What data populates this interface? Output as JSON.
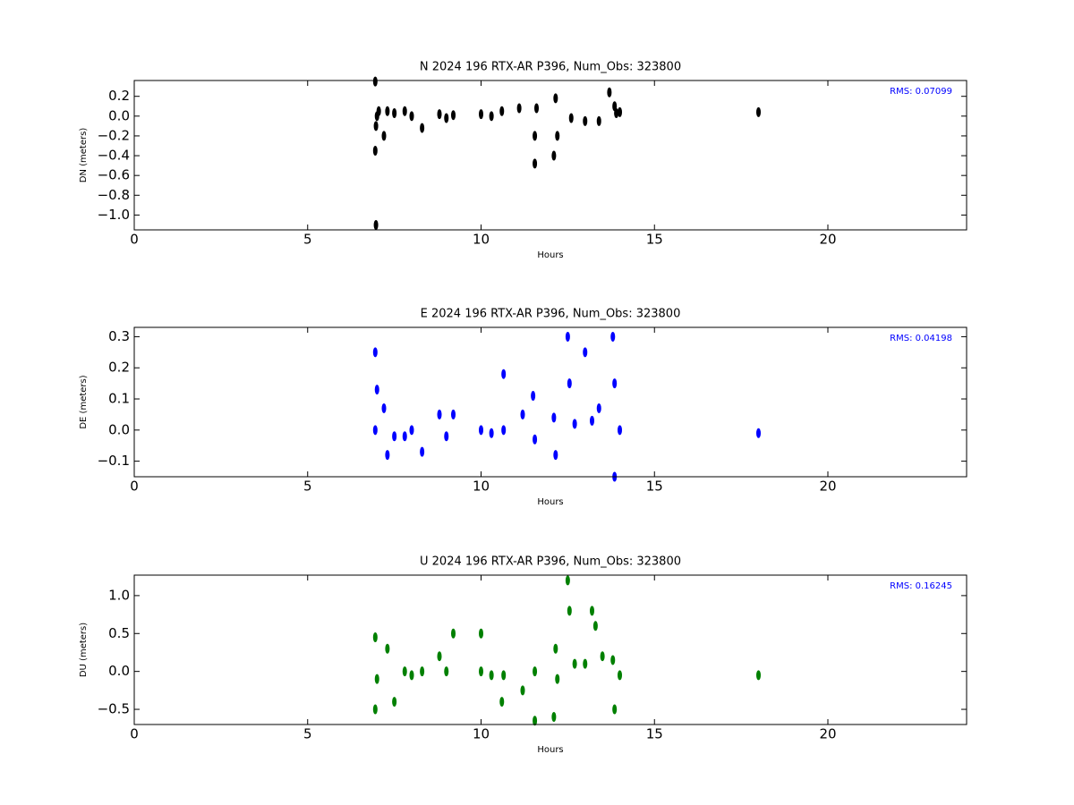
{
  "chart_data": [
    {
      "type": "scatter",
      "title": "N 2024 196 RTX-AR  P396, Num_Obs: 323800",
      "x_label": "Hours",
      "y_label": "DN (meters)",
      "annotation": "RMS:  0.07099",
      "color": "#000000",
      "xlim": [
        0,
        24
      ],
      "xticks": [
        0,
        5,
        10,
        15,
        20
      ],
      "ylim": [
        -1.15,
        0.36
      ],
      "yticks": [
        {
          "value": -1.0,
          "label": "−1.0"
        },
        {
          "value": -0.8,
          "label": "−0.8"
        },
        {
          "value": -0.6,
          "label": "−0.6"
        },
        {
          "value": -0.4,
          "label": "−0.4"
        },
        {
          "value": -0.2,
          "label": "−0.2"
        },
        {
          "value": 0,
          "label": "0.0"
        },
        0.2
      ],
      "x": [
        6.95,
        6.95,
        6.97,
        7.0,
        7.05,
        7.2,
        7.3,
        7.5,
        7.8,
        8.0,
        8.3,
        8.8,
        9.0,
        9.2,
        10.0,
        10.3,
        10.6,
        11.1,
        11.55,
        11.55,
        11.6,
        12.1,
        12.15,
        12.2,
        12.6,
        13.0,
        13.4,
        13.7,
        13.85,
        13.9,
        14.0,
        18.0,
        6.97
      ],
      "y": [
        0.35,
        -0.35,
        -0.1,
        0.0,
        0.05,
        -0.2,
        0.05,
        0.03,
        0.05,
        0.0,
        -0.12,
        0.02,
        -0.02,
        0.01,
        0.02,
        0.0,
        0.05,
        0.08,
        -0.48,
        -0.2,
        0.08,
        -0.4,
        0.18,
        -0.2,
        -0.02,
        -0.05,
        -0.05,
        0.24,
        0.1,
        0.03,
        0.04,
        0.04,
        -1.1
      ]
    },
    {
      "type": "scatter",
      "title": "E 2024 196 RTX-AR  P396, Num_Obs: 323800",
      "x_label": "Hours",
      "y_label": "DE (meters)",
      "annotation": "RMS:  0.04198",
      "color": "#0000ff",
      "xlim": [
        0,
        24
      ],
      "xticks": [
        0,
        5,
        10,
        15,
        20
      ],
      "ylim": [
        -0.15,
        0.33
      ],
      "yticks": [
        {
          "value": -0.1,
          "label": "−0.1"
        },
        {
          "value": 0,
          "label": "0.0"
        },
        0.1,
        0.2,
        0.3
      ],
      "x": [
        6.95,
        6.95,
        7.0,
        7.2,
        7.3,
        7.5,
        7.8,
        8.0,
        8.3,
        8.8,
        9.0,
        9.2,
        10.0,
        10.3,
        10.65,
        10.65,
        11.2,
        11.5,
        11.55,
        12.1,
        12.15,
        12.5,
        12.55,
        12.7,
        13.0,
        13.2,
        13.4,
        13.8,
        13.85,
        13.85,
        14.0,
        18.0
      ],
      "y": [
        0.25,
        0.0,
        0.13,
        0.07,
        -0.08,
        -0.02,
        -0.02,
        0.0,
        -0.07,
        0.05,
        -0.02,
        0.05,
        0.0,
        -0.01,
        0.18,
        0.0,
        0.05,
        0.11,
        -0.03,
        0.04,
        -0.08,
        0.3,
        0.15,
        0.02,
        0.25,
        0.03,
        0.07,
        0.3,
        -0.15,
        0.15,
        0.0,
        -0.01
      ]
    },
    {
      "type": "scatter",
      "title": "U 2024 196 RTX-AR  P396, Num_Obs: 323800",
      "x_label": "Hours",
      "y_label": "DU (meters)",
      "annotation": "RMS:  0.16245",
      "color": "#008000",
      "xlim": [
        0,
        24
      ],
      "xticks": [
        0,
        5,
        10,
        15,
        20
      ],
      "ylim": [
        -0.7,
        1.27
      ],
      "yticks": [
        {
          "value": -0.5,
          "label": "−0.5"
        },
        {
          "value": 0,
          "label": "0.0"
        },
        0.5,
        {
          "value": 1.0,
          "label": "1.0"
        }
      ],
      "x": [
        6.95,
        6.95,
        7.0,
        7.3,
        7.5,
        7.8,
        8.0,
        8.3,
        8.8,
        9.0,
        9.2,
        10.0,
        10.0,
        10.3,
        10.6,
        10.65,
        11.2,
        11.55,
        11.55,
        12.1,
        12.15,
        12.2,
        12.5,
        12.55,
        12.7,
        13.0,
        13.2,
        13.3,
        13.5,
        13.8,
        13.85,
        14.0,
        18.0
      ],
      "y": [
        0.45,
        -0.5,
        -0.1,
        0.3,
        -0.4,
        0.0,
        -0.05,
        0.0,
        0.2,
        0.0,
        0.5,
        0.5,
        0.0,
        -0.05,
        -0.4,
        -0.05,
        -0.25,
        -0.65,
        0.0,
        -0.6,
        0.3,
        -0.1,
        1.2,
        0.8,
        0.1,
        0.1,
        0.8,
        0.6,
        0.2,
        0.15,
        -0.5,
        -0.05,
        -0.05
      ]
    }
  ]
}
